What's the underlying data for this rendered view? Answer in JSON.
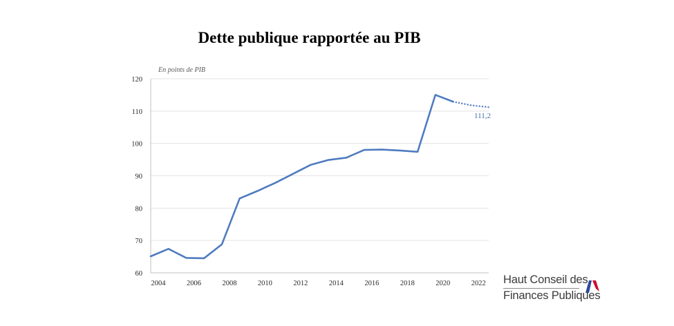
{
  "chart_data": {
    "type": "line",
    "title": "Dette publique rapportée au PIB",
    "unit_label": "En points de PIB",
    "xlabel": "",
    "ylabel": "",
    "xlim": [
      2004,
      2023
    ],
    "ylim": [
      60,
      120
    ],
    "x_ticks": [
      2004,
      2006,
      2008,
      2010,
      2012,
      2014,
      2016,
      2018,
      2020,
      2022
    ],
    "y_ticks": [
      60,
      70,
      80,
      90,
      100,
      110,
      120
    ],
    "grid": true,
    "colors": {
      "line": "#4f7bbf",
      "grid": "#e3e3e3",
      "axis": "#bfbfbf",
      "annotation": "#3f69ab"
    },
    "series": [
      {
        "x": [
          2004,
          2005,
          2006,
          2007,
          2008,
          2009,
          2010,
          2011,
          2012,
          2013,
          2014,
          2015,
          2016,
          2017,
          2018,
          2019,
          2020,
          2021
        ],
        "y": [
          65.1,
          67.4,
          64.6,
          64.5,
          68.8,
          83.0,
          85.3,
          87.8,
          90.6,
          93.4,
          94.9,
          95.6,
          98.0,
          98.1,
          97.8,
          97.4,
          115.0,
          112.9
        ],
        "style": "solid"
      },
      {
        "x": [
          2021,
          2022,
          2023
        ],
        "y": [
          112.9,
          111.8,
          111.2
        ],
        "style": "dotted"
      }
    ],
    "annotations": [
      {
        "x": 2023,
        "y": 111.2,
        "text": "111,2"
      }
    ]
  },
  "logo": {
    "line1": "Haut Conseil des",
    "line2": "Finances Publiques",
    "flag_colors": [
      "#2b4a9c",
      "#c8102e"
    ]
  }
}
